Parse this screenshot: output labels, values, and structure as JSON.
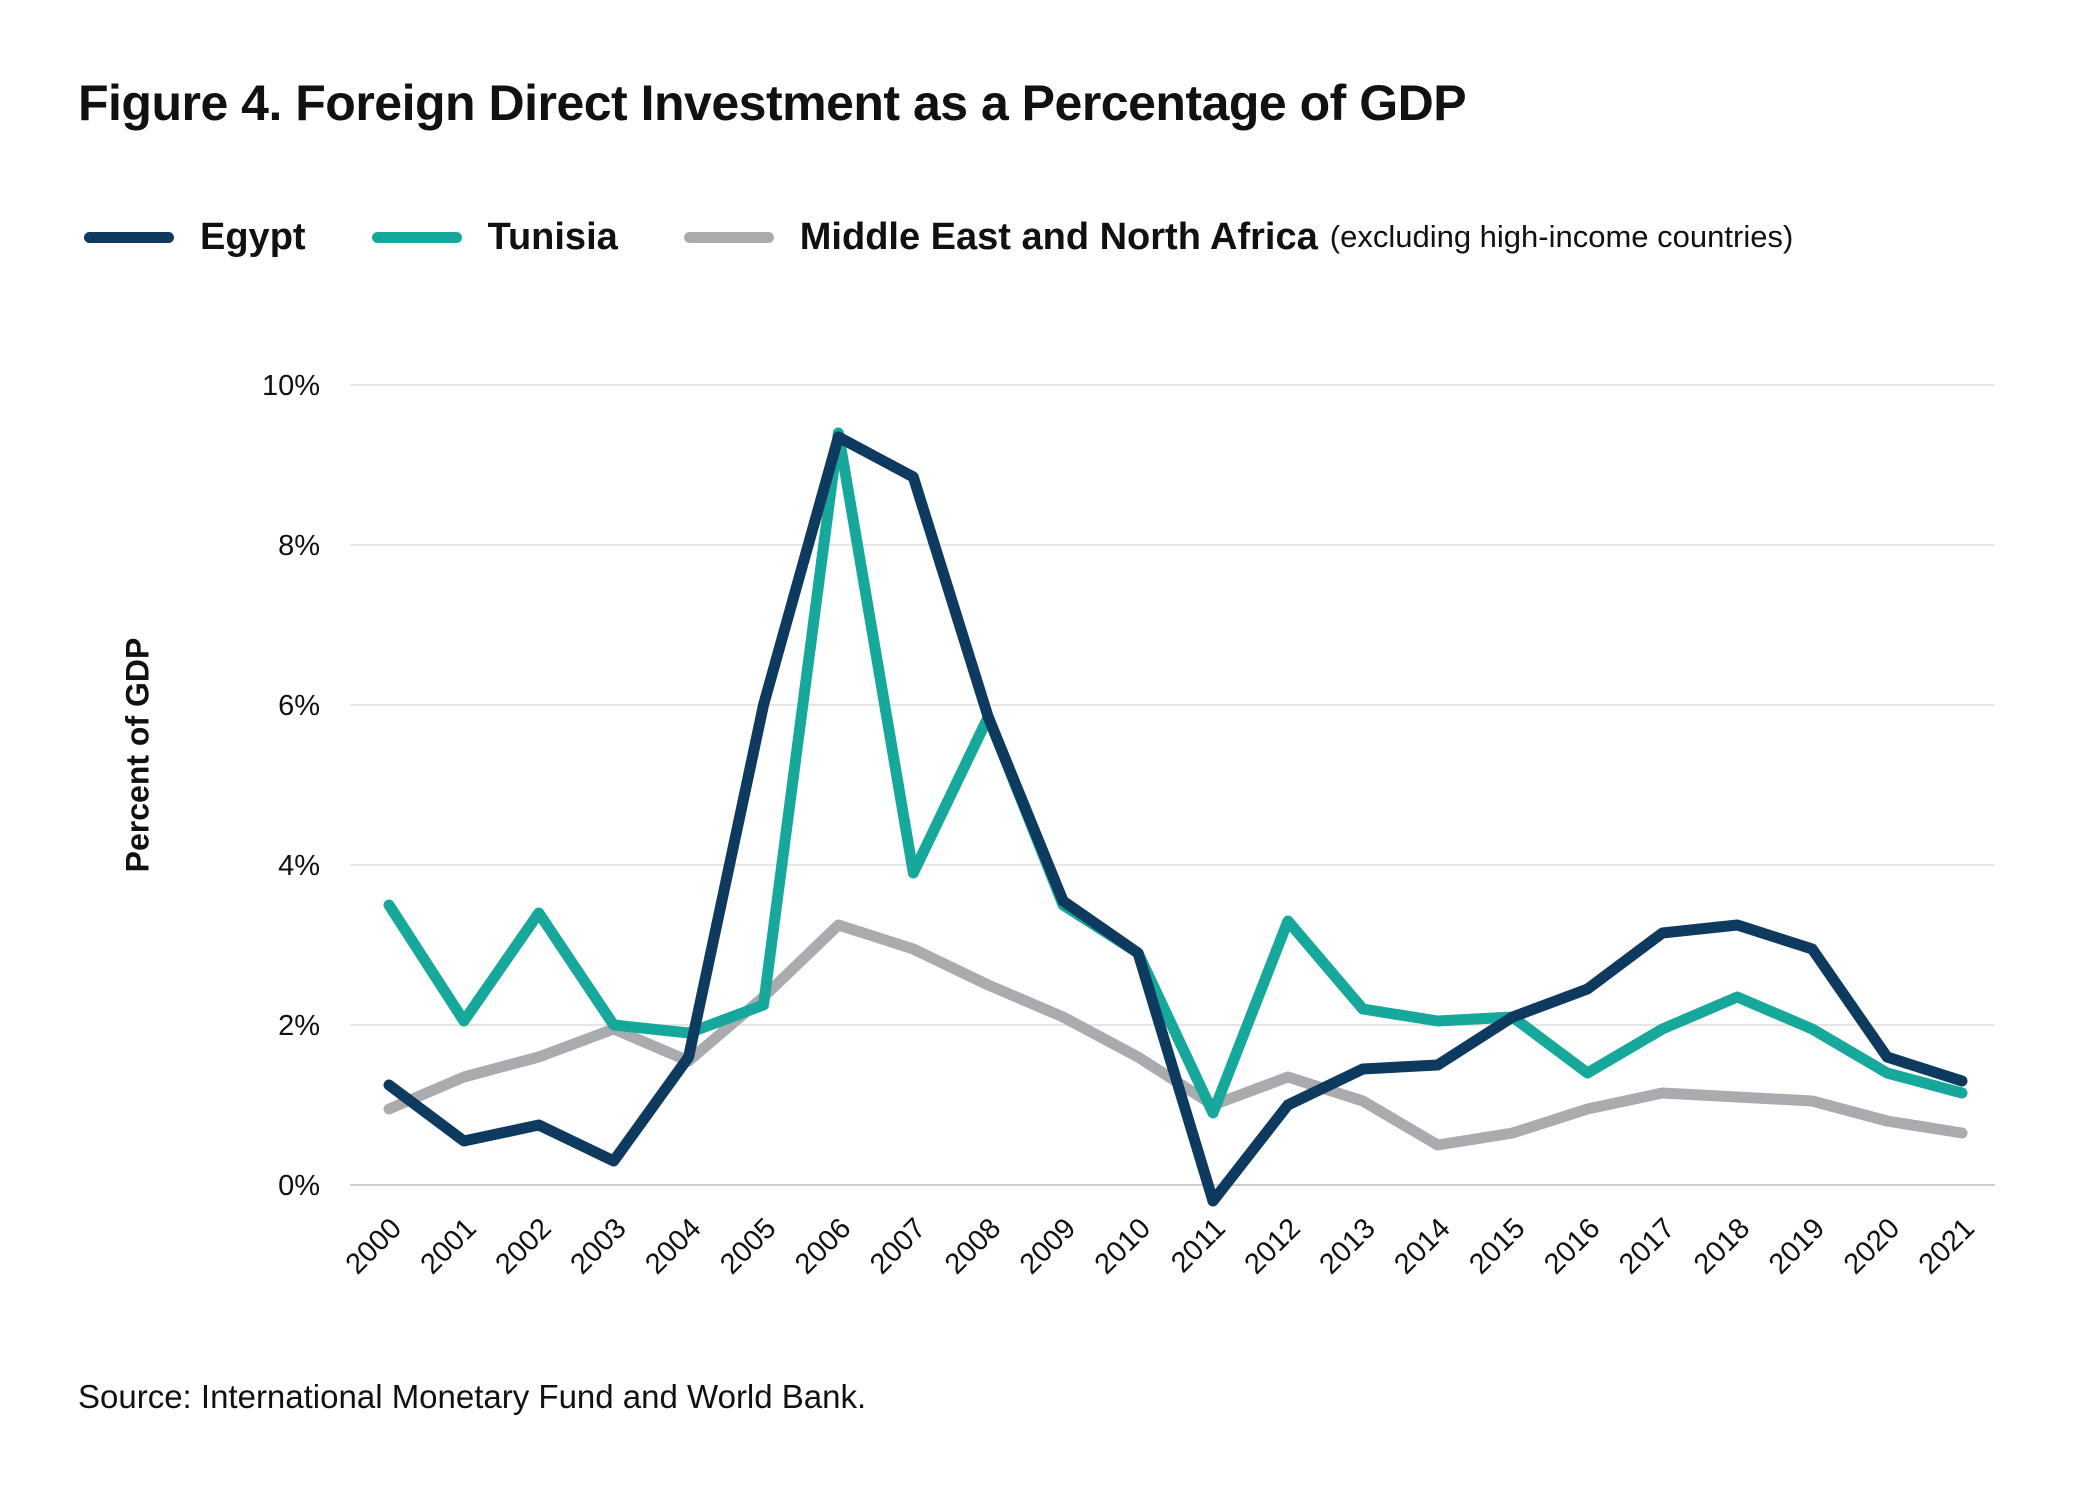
{
  "title": "Figure 4. Foreign Direct Investment as a Percentage of GDP",
  "legend": {
    "items": [
      {
        "label": "Egypt",
        "note": "",
        "color": "#0d3a5e"
      },
      {
        "label": "Tunisia",
        "note": "",
        "color": "#17a89c"
      },
      {
        "label": "Middle East and North Africa",
        "note": "(excluding high-income countries)",
        "color": "#a9abae"
      }
    ]
  },
  "source": "Source: International Monetary Fund and World Bank.",
  "chart_data": {
    "type": "line",
    "title": "Figure 4. Foreign Direct Investment as a Percentage of GDP",
    "xlabel": "",
    "ylabel": "Percent of GDP",
    "x": [
      "2000",
      "2001",
      "2002",
      "2003",
      "2004",
      "2005",
      "2006",
      "2007",
      "2008",
      "2009",
      "2010",
      "2011",
      "2012",
      "2013",
      "2014",
      "2015",
      "2016",
      "2017",
      "2018",
      "2019",
      "2020",
      "2021"
    ],
    "ylim": [
      0,
      10
    ],
    "yticks": [
      0,
      2,
      4,
      6,
      8,
      10
    ],
    "ytick_labels": [
      "0%",
      "2%",
      "4%",
      "6%",
      "8%",
      "10%"
    ],
    "grid": true,
    "legend_position": "top",
    "series": [
      {
        "name": "Egypt",
        "color": "#0d3a5e",
        "values": [
          1.25,
          0.55,
          0.75,
          0.3,
          1.6,
          6.0,
          9.35,
          8.85,
          5.85,
          3.55,
          2.9,
          -0.2,
          1.0,
          1.45,
          1.5,
          2.1,
          2.45,
          3.15,
          3.25,
          2.95,
          1.6,
          1.3
        ]
      },
      {
        "name": "Tunisia",
        "color": "#17a89c",
        "values": [
          3.5,
          2.05,
          3.4,
          2.0,
          1.9,
          2.25,
          9.4,
          3.9,
          5.85,
          3.5,
          2.9,
          0.9,
          3.3,
          2.2,
          2.05,
          2.1,
          1.4,
          1.95,
          2.35,
          1.95,
          1.4,
          1.15
        ]
      },
      {
        "name": "Middle East and North Africa (excluding high-income countries)",
        "color": "#a9abae",
        "values": [
          0.95,
          1.35,
          1.6,
          1.95,
          1.55,
          2.35,
          3.25,
          2.95,
          2.5,
          2.1,
          1.6,
          1.0,
          1.35,
          1.05,
          0.5,
          0.65,
          0.95,
          1.15,
          1.1,
          1.05,
          0.8,
          0.65
        ]
      }
    ]
  }
}
